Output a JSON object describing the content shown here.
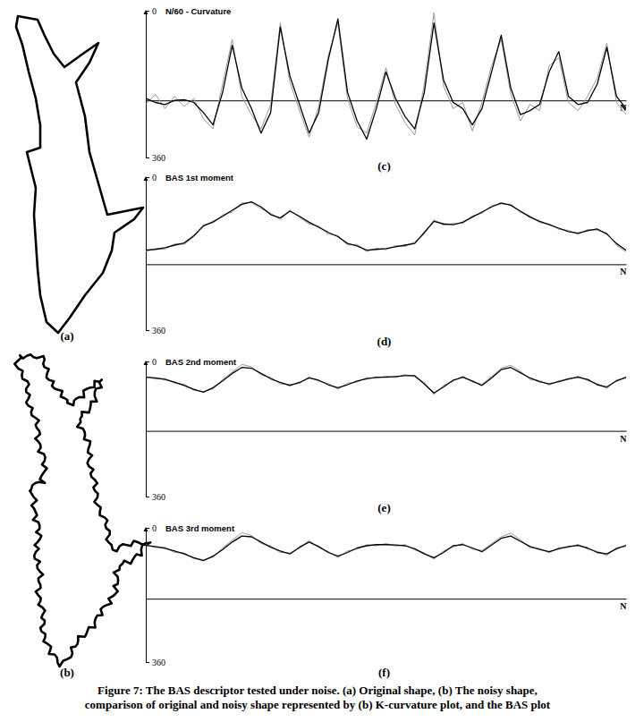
{
  "chart_data": [
    {
      "type": "line",
      "title": "N/60 - Curvature",
      "panel_label": "(c)",
      "x": [
        0,
        2,
        4,
        6,
        8,
        10,
        12,
        14,
        16,
        18,
        20,
        22,
        24,
        26,
        28,
        30,
        32,
        34,
        36,
        38,
        40,
        42,
        44,
        46,
        48,
        50,
        52,
        54,
        56,
        58,
        60,
        62,
        64,
        66,
        68,
        70,
        72,
        74,
        76,
        78,
        80,
        82,
        84,
        86,
        88,
        90,
        92,
        94,
        96,
        98,
        100
      ],
      "xlim": [
        0,
        100
      ],
      "xticks": [
        {
          "value": 100,
          "label": "N"
        }
      ],
      "ylim": [
        0,
        360
      ],
      "yticks": [
        0,
        360
      ],
      "baseline": 220,
      "grid": false,
      "series": [
        {
          "color": "#000000",
          "values": [
            215,
            225,
            230,
            220,
            218,
            225,
            250,
            280,
            200,
            85,
            190,
            240,
            300,
            250,
            40,
            160,
            230,
            300,
            250,
            120,
            20,
            200,
            270,
            315,
            240,
            150,
            215,
            260,
            290,
            200,
            30,
            170,
            225,
            240,
            280,
            240,
            150,
            60,
            190,
            255,
            245,
            230,
            150,
            100,
            210,
            230,
            225,
            180,
            90,
            210,
            240
          ]
        },
        {
          "color": "#999999",
          "values": [
            230,
            205,
            240,
            210,
            235,
            215,
            265,
            290,
            180,
            70,
            210,
            255,
            290,
            230,
            30,
            175,
            245,
            310,
            235,
            110,
            30,
            215,
            285,
            300,
            225,
            140,
            230,
            275,
            305,
            180,
            5,
            185,
            240,
            225,
            295,
            225,
            135,
            70,
            205,
            270,
            230,
            245,
            135,
            115,
            225,
            245,
            210,
            165,
            80,
            225,
            255
          ]
        }
      ]
    },
    {
      "type": "line",
      "title": "BAS 1st moment",
      "panel_label": "(d)",
      "x": [
        0,
        2,
        4,
        6,
        8,
        10,
        12,
        14,
        16,
        18,
        20,
        22,
        24,
        26,
        28,
        30,
        32,
        34,
        36,
        38,
        40,
        42,
        44,
        46,
        48,
        50,
        52,
        54,
        56,
        58,
        60,
        62,
        64,
        66,
        68,
        70,
        72,
        74,
        76,
        78,
        80,
        82,
        84,
        86,
        88,
        90,
        92,
        94,
        96,
        98,
        100
      ],
      "xlim": [
        0,
        100
      ],
      "xticks": [
        {
          "value": 100,
          "label": "N"
        }
      ],
      "ylim": [
        0,
        360
      ],
      "yticks": [
        0,
        360
      ],
      "baseline": 205,
      "grid": false,
      "series": [
        {
          "color": "#000000",
          "values": [
            172,
            170,
            166,
            160,
            155,
            138,
            115,
            105,
            92,
            78,
            64,
            58,
            70,
            88,
            96,
            80,
            92,
            106,
            118,
            130,
            140,
            156,
            162,
            172,
            170,
            168,
            164,
            160,
            156,
            130,
            104,
            110,
            112,
            106,
            94,
            82,
            70,
            61,
            66,
            80,
            94,
            104,
            112,
            120,
            128,
            132,
            126,
            122,
            134,
            156,
            172
          ]
        },
        {
          "color": "#999999",
          "values": [
            175,
            168,
            170,
            157,
            158,
            140,
            112,
            108,
            89,
            82,
            61,
            60,
            74,
            85,
            100,
            77,
            95,
            110,
            115,
            134,
            137,
            160,
            158,
            175,
            167,
            171,
            161,
            163,
            152,
            134,
            100,
            113,
            109,
            109,
            91,
            85,
            67,
            63,
            64,
            83,
            91,
            107,
            110,
            123,
            125,
            135,
            123,
            125,
            131,
            160,
            176
          ]
        }
      ]
    },
    {
      "type": "line",
      "title": "BAS 2nd moment",
      "panel_label": "(e)",
      "x": [
        0,
        2,
        4,
        6,
        8,
        10,
        12,
        14,
        16,
        18,
        20,
        22,
        24,
        26,
        28,
        30,
        32,
        34,
        36,
        38,
        40,
        42,
        44,
        46,
        48,
        50,
        52,
        54,
        56,
        58,
        60,
        62,
        64,
        66,
        68,
        70,
        72,
        74,
        76,
        78,
        80,
        82,
        84,
        86,
        88,
        90,
        92,
        94,
        96,
        98,
        100
      ],
      "xlim": [
        0,
        100
      ],
      "xticks": [
        {
          "value": 100,
          "label": "N"
        }
      ],
      "ylim": [
        0,
        360
      ],
      "yticks": [
        0,
        360
      ],
      "baseline": 185,
      "grid": false,
      "series": [
        {
          "color": "#000000",
          "values": [
            42,
            44,
            48,
            55,
            64,
            74,
            82,
            70,
            52,
            32,
            16,
            18,
            32,
            46,
            56,
            64,
            56,
            44,
            50,
            62,
            70,
            62,
            52,
            46,
            42,
            42,
            40,
            38,
            38,
            60,
            84,
            68,
            50,
            42,
            52,
            64,
            44,
            22,
            16,
            30,
            44,
            54,
            60,
            54,
            46,
            42,
            48,
            62,
            68,
            52,
            42
          ]
        },
        {
          "color": "#999999",
          "values": [
            40,
            47,
            45,
            58,
            61,
            77,
            80,
            73,
            48,
            28,
            8,
            14,
            36,
            42,
            60,
            61,
            59,
            41,
            53,
            59,
            74,
            58,
            55,
            43,
            45,
            39,
            43,
            35,
            41,
            56,
            88,
            64,
            53,
            39,
            55,
            61,
            40,
            18,
            10,
            26,
            48,
            51,
            63,
            51,
            49,
            39,
            51,
            59,
            72,
            49,
            45
          ]
        }
      ]
    },
    {
      "type": "line",
      "title": "BAS 3rd moment",
      "panel_label": "(f)",
      "x": [
        0,
        2,
        4,
        6,
        8,
        10,
        12,
        14,
        16,
        18,
        20,
        22,
        24,
        26,
        28,
        30,
        32,
        34,
        36,
        38,
        40,
        42,
        44,
        46,
        48,
        50,
        52,
        54,
        56,
        58,
        60,
        62,
        64,
        66,
        68,
        70,
        72,
        74,
        76,
        78,
        80,
        82,
        84,
        86,
        88,
        90,
        92,
        94,
        96,
        98,
        100
      ],
      "xlim": [
        0,
        100
      ],
      "xticks": [
        {
          "value": 100,
          "label": "N"
        }
      ],
      "ylim": [
        0,
        360
      ],
      "yticks": [
        0,
        360
      ],
      "baseline": 190,
      "grid": false,
      "series": [
        {
          "color": "#000000",
          "values": [
            47,
            50,
            55,
            62,
            70,
            80,
            88,
            76,
            58,
            38,
            22,
            24,
            38,
            52,
            62,
            70,
            52,
            38,
            50,
            66,
            76,
            66,
            54,
            48,
            45,
            45,
            46,
            48,
            56,
            70,
            80,
            66,
            48,
            45,
            54,
            64,
            46,
            28,
            22,
            36,
            50,
            58,
            64,
            56,
            50,
            47,
            54,
            66,
            70,
            56,
            47
          ]
        },
        {
          "color": "#999999",
          "values": [
            45,
            53,
            52,
            66,
            67,
            83,
            85,
            79,
            54,
            33,
            13,
            20,
            42,
            48,
            66,
            67,
            55,
            34,
            53,
            63,
            80,
            62,
            57,
            45,
            48,
            42,
            49,
            45,
            59,
            67,
            84,
            62,
            51,
            42,
            57,
            61,
            42,
            24,
            14,
            32,
            53,
            55,
            67,
            53,
            53,
            44,
            57,
            63,
            74,
            53,
            50
          ]
        }
      ]
    }
  ],
  "shapes": [
    {
      "label": "(a)"
    },
    {
      "label": "(b)"
    }
  ],
  "caption": [
    "Figure 7: The BAS descriptor tested under noise. (a) Original shape, (b) The noisy shape,",
    "comparison of original and noisy shape represented by (b) K-curvature plot, and the BAS plot"
  ]
}
